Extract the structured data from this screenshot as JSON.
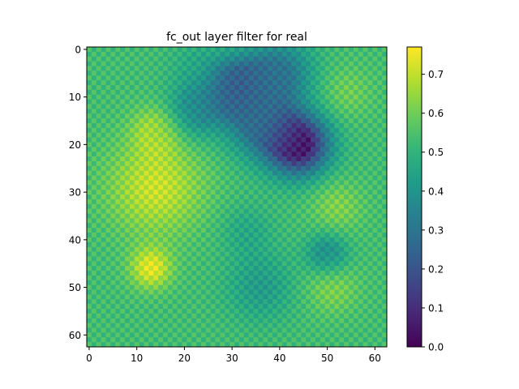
{
  "chart_data": {
    "type": "heatmap",
    "title": "fc_out layer filter for real",
    "xlabel": "",
    "ylabel": "",
    "rows": 63,
    "cols": 63,
    "x_ticks": [
      0,
      10,
      20,
      30,
      40,
      50,
      60
    ],
    "y_ticks": [
      0,
      10,
      20,
      30,
      40,
      50,
      60
    ],
    "colormap": "viridis",
    "colorbar": {
      "min": 0.0,
      "max": 0.77,
      "ticks": [
        0.0,
        0.1,
        0.2,
        0.3,
        0.4,
        0.5,
        0.6,
        0.7
      ],
      "tick_labels": [
        "0.0",
        "0.1",
        "0.2",
        "0.3",
        "0.4",
        "0.5",
        "0.6",
        "0.7"
      ]
    },
    "checkerboard_amplitude": 0.035,
    "base_level": 0.53,
    "features": [
      {
        "row": 20,
        "col": 44,
        "value": 0.02,
        "spread": 4.5
      },
      {
        "row": 8,
        "col": 31,
        "value": 0.2,
        "spread": 4.5
      },
      {
        "row": 5,
        "col": 40,
        "value": 0.3,
        "spread": 5
      },
      {
        "row": 16,
        "col": 36,
        "value": 0.3,
        "spread": 5
      },
      {
        "row": 13,
        "col": 22,
        "value": 0.36,
        "spread": 4
      },
      {
        "row": 3,
        "col": 22,
        "value": 0.48,
        "spread": 4
      },
      {
        "row": 43,
        "col": 50,
        "value": 0.35,
        "spread": 3
      },
      {
        "row": 50,
        "col": 36,
        "value": 0.42,
        "spread": 5
      },
      {
        "row": 38,
        "col": 33,
        "value": 0.46,
        "spread": 4
      },
      {
        "row": 29,
        "col": 14,
        "value": 0.71,
        "spread": 7
      },
      {
        "row": 46,
        "col": 13,
        "value": 0.74,
        "spread": 3
      },
      {
        "row": 17,
        "col": 14,
        "value": 0.66,
        "spread": 3.5
      },
      {
        "row": 9,
        "col": 54,
        "value": 0.6,
        "spread": 4
      },
      {
        "row": 33,
        "col": 52,
        "value": 0.62,
        "spread": 4
      },
      {
        "row": 50,
        "col": 51,
        "value": 0.62,
        "spread": 4
      }
    ]
  }
}
